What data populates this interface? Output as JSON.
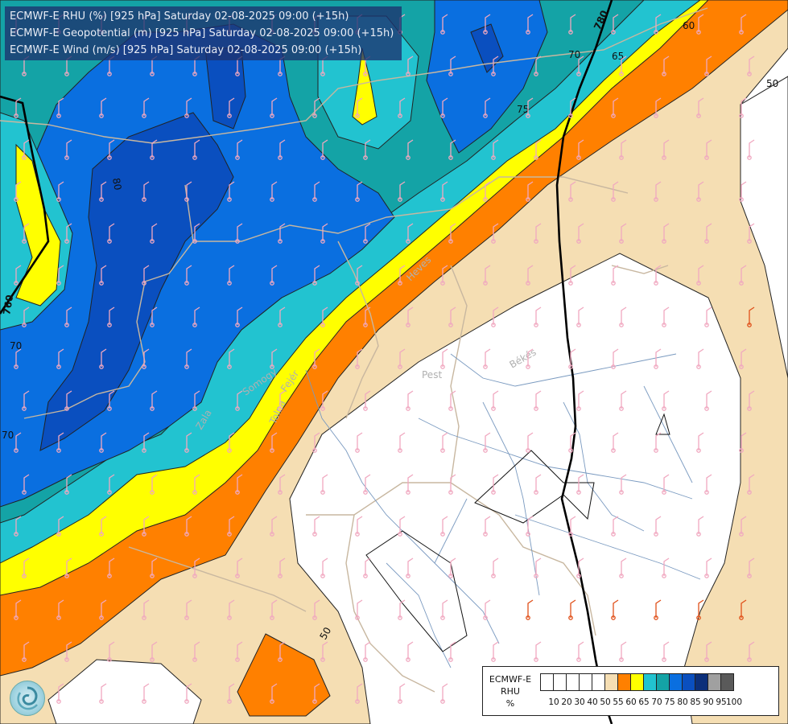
{
  "header": {
    "line1": "ECMWF-E RHU (%) [925 hPa] Saturday 02-08-2025 09:00 (+15h)",
    "line2": "ECMWF-E Geopotential (m) [925 hPa] Saturday 02-08-2025 09:00 (+15h)",
    "line3": "ECMWF-E Wind (m/s) [925 hPa] Saturday 02-08-2025 09:00 (+15h)"
  },
  "legend": {
    "title1": "ECMWF-E",
    "title2": "RHU",
    "title3": "%",
    "swatches": [
      "#ffffff",
      "#ffffff",
      "#ffffff",
      "#ffffff",
      "#ffffff",
      "#f5deb3",
      "#ff8000",
      "#ffff00",
      "#22c3d0",
      "#14a3a6",
      "#0a6fe0",
      "#0a4fbf",
      "#0b2f7a",
      "#a0a0a0",
      "#5a5a5a"
    ],
    "ticks": [
      "10",
      "20",
      "30",
      "40",
      "50",
      "55",
      "60",
      "65",
      "70",
      "75",
      "80",
      "85",
      "90",
      "95",
      "100"
    ]
  },
  "map": {
    "contour_labels": [
      "780",
      "760",
      "80",
      "75",
      "70",
      "70",
      "65",
      "60",
      "50",
      "50",
      "70"
    ],
    "region_labels": [
      "Heves",
      "Pest",
      "Békés",
      "Tolna",
      "Fejér",
      "Zala",
      "Somogy"
    ],
    "colors": {
      "white": "#ffffff",
      "tan": "#f5deb3",
      "orange": "#ff8000",
      "yellow": "#ffff00",
      "cyan": "#22c3d0",
      "teal": "#14a3a6",
      "blue": "#0a6fe0",
      "dark_blue": "#0a4fbf",
      "navy": "#0b2f7a"
    }
  }
}
